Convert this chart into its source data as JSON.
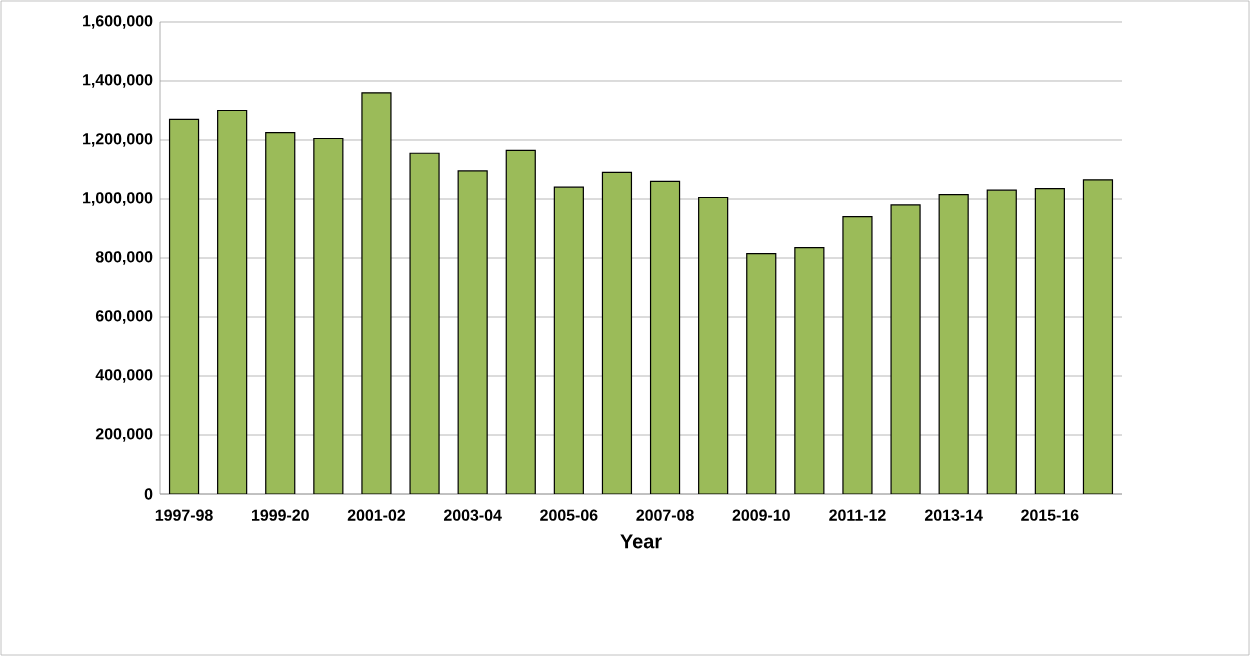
{
  "chart_data": {
    "type": "bar",
    "xlabel": "Year",
    "categories": [
      "1997-98",
      null,
      "1999-20",
      null,
      "2001-02",
      null,
      "2003-04",
      null,
      "2005-06",
      null,
      "2007-08",
      null,
      "2009-10",
      null,
      "2011-12",
      null,
      "2013-14",
      null,
      "2015-16",
      null
    ],
    "values": [
      1270000,
      1300000,
      1225000,
      1205000,
      1360000,
      1155000,
      1095000,
      1165000,
      1040000,
      1090000,
      1060000,
      1005000,
      815000,
      835000,
      940000,
      980000,
      1015000,
      1030000,
      1035000,
      1065000
    ],
    "color": "#9bbb59",
    "ylim": [
      0,
      1600000
    ],
    "yticks": [
      {
        "value": 0,
        "label": "0"
      },
      {
        "value": 200000,
        "label": "200,000"
      },
      {
        "value": 400000,
        "label": "400,000"
      },
      {
        "value": 600000,
        "label": "600,000"
      },
      {
        "value": 800000,
        "label": "800,000"
      },
      {
        "value": 1000000,
        "label": "1,000,000"
      },
      {
        "value": 1200000,
        "label": "1,200,000"
      },
      {
        "value": 1400000,
        "label": "1,400,000"
      },
      {
        "value": 1600000,
        "label": "1,600,000"
      }
    ],
    "grid": "y"
  }
}
